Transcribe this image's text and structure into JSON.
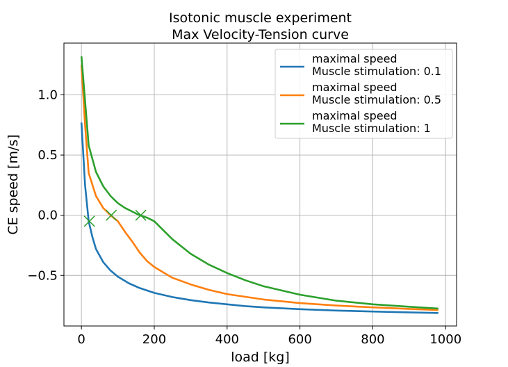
{
  "chart_data": {
    "type": "line",
    "title_lines": [
      "Isotonic muscle experiment",
      "Max Velocity-Tension curve"
    ],
    "xlabel": "load [kg]",
    "ylabel": "CE speed [m/s]",
    "xlim": [
      -48,
      1030
    ],
    "ylim": [
      -0.92,
      1.43
    ],
    "xticks": [
      0,
      200,
      400,
      600,
      800,
      1000
    ],
    "yticks": [
      -0.5,
      0.0,
      0.5,
      1.0
    ],
    "xtick_labels": [
      "0",
      "200",
      "400",
      "600",
      "800",
      "1000"
    ],
    "ytick_labels": [
      "−0.5",
      "0.0",
      "0.5",
      "1.0"
    ],
    "grid": true,
    "legend_position": "upper right",
    "series": [
      {
        "name_lines": [
          "maximal speed",
          "Muscle stimulation: 0.1"
        ],
        "color": "#1f77b4",
        "x": [
          0,
          10,
          20,
          30,
          40,
          60,
          80,
          100,
          130,
          160,
          200,
          250,
          300,
          350,
          400,
          450,
          500,
          600,
          700,
          800,
          900,
          980
        ],
        "y": [
          0.77,
          0.25,
          -0.05,
          -0.18,
          -0.28,
          -0.39,
          -0.46,
          -0.51,
          -0.565,
          -0.605,
          -0.645,
          -0.68,
          -0.705,
          -0.725,
          -0.74,
          -0.755,
          -0.765,
          -0.78,
          -0.792,
          -0.8,
          -0.807,
          -0.812
        ]
      },
      {
        "name_lines": [
          "maximal speed",
          "Muscle stimulation: 0.5"
        ],
        "color": "#ff7f0e",
        "x": [
          0,
          10,
          20,
          40,
          60,
          80,
          100,
          120,
          140,
          160,
          180,
          200,
          250,
          300,
          350,
          400,
          500,
          600,
          700,
          800,
          900,
          980
        ],
        "y": [
          1.25,
          0.75,
          0.35,
          0.16,
          0.06,
          0.0,
          -0.05,
          -0.14,
          -0.22,
          -0.31,
          -0.38,
          -0.43,
          -0.52,
          -0.575,
          -0.62,
          -0.655,
          -0.7,
          -0.73,
          -0.75,
          -0.765,
          -0.778,
          -0.788
        ]
      },
      {
        "name_lines": [
          "maximal speed",
          "Muscle stimulation: 1"
        ],
        "color": "#2ca02c",
        "x": [
          0,
          10,
          20,
          40,
          60,
          80,
          100,
          120,
          140,
          160,
          180,
          200,
          250,
          300,
          350,
          400,
          450,
          500,
          600,
          700,
          800,
          900,
          980
        ],
        "y": [
          1.32,
          0.95,
          0.58,
          0.36,
          0.24,
          0.16,
          0.1,
          0.06,
          0.03,
          0.0,
          -0.02,
          -0.05,
          -0.2,
          -0.32,
          -0.41,
          -0.48,
          -0.54,
          -0.59,
          -0.66,
          -0.71,
          -0.74,
          -0.76,
          -0.775
        ]
      }
    ],
    "markers": {
      "symbol": "x",
      "color": "#2ca02c",
      "points": [
        {
          "x": 22,
          "y": -0.05
        },
        {
          "x": 82,
          "y": 0.0
        },
        {
          "x": 163,
          "y": 0.0
        }
      ]
    }
  }
}
